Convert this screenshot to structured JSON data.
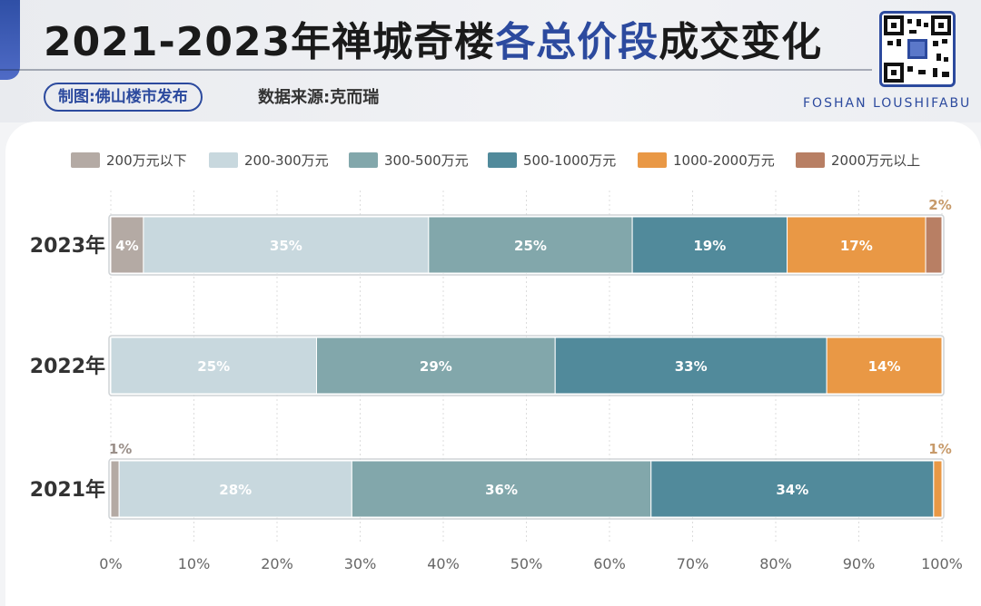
{
  "header": {
    "title_part1": "2021-2023年禅城奇楼",
    "title_highlight": "各总价段",
    "title_part2": "成交变化",
    "credit": "制图:佛山楼市发布",
    "source": "数据来源:克而瑞",
    "brand": "FOSHAN LOUSHIFABU",
    "qr_icon": "qr-code-icon"
  },
  "chart_data": {
    "type": "bar",
    "orientation": "horizontal",
    "stacked": true,
    "categories": [
      "2023年",
      "2022年",
      "2021年"
    ],
    "series": [
      {
        "name": "200万元以下",
        "color": "#b4aaa4",
        "values": [
          4,
          0,
          1
        ],
        "labels": [
          "4%",
          "",
          "1%"
        ]
      },
      {
        "name": "200-300万元",
        "color": "#c8d8de",
        "values": [
          35,
          25,
          28
        ],
        "labels": [
          "35%",
          "25%",
          "28%"
        ]
      },
      {
        "name": "300-500万元",
        "color": "#82a7ab",
        "values": [
          25,
          29,
          36
        ],
        "labels": [
          "25%",
          "29%",
          "36%"
        ]
      },
      {
        "name": "500-1000万元",
        "color": "#518a9b",
        "values": [
          19,
          33,
          34
        ],
        "labels": [
          "19%",
          "33%",
          "34%"
        ]
      },
      {
        "name": "1000-2000万元",
        "color": "#e99845",
        "values": [
          17,
          14,
          1
        ],
        "labels": [
          "17%",
          "14%",
          "1%"
        ]
      },
      {
        "name": "2000万元以上",
        "color": "#b87f64",
        "values": [
          2,
          0,
          0
        ],
        "labels": [
          "2%",
          "",
          ""
        ]
      }
    ],
    "xlim": [
      0,
      100
    ],
    "xticks": [
      "0%",
      "10%",
      "20%",
      "30%",
      "40%",
      "50%",
      "60%",
      "70%",
      "80%",
      "90%",
      "100%"
    ],
    "legend_position": "top",
    "grid": true
  }
}
